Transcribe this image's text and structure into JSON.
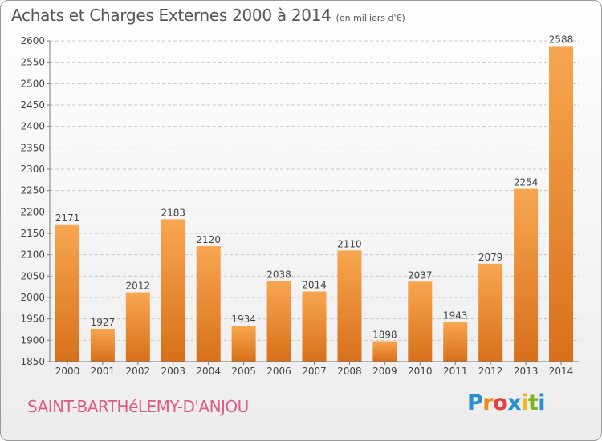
{
  "title": "Achats et Charges Externes 2000 à 2014",
  "unit": "(en milliers d'€)",
  "commune": "SAINT-BARTHéLEMY-D'ANJOU",
  "logo": {
    "letters": [
      "P",
      "r",
      "o",
      "x",
      "i",
      "t",
      "i"
    ],
    "colors": [
      "#2a8fd0",
      "#f08a1c",
      "#e73e3e",
      "#2a8fd0",
      "#f2b81b",
      "#7ab51d",
      "#2a8fd0"
    ]
  },
  "colors": {
    "bar_top": "#f8a650",
    "bar_bottom": "#d8701a",
    "grid": "#c8c8c8",
    "text": "#444444"
  },
  "chart_data": {
    "type": "bar",
    "title": "Achats et Charges Externes 2000 à 2014",
    "subtitle": "(en milliers d'€)",
    "categories": [
      "2000",
      "2001",
      "2002",
      "2003",
      "2004",
      "2005",
      "2006",
      "2007",
      "2008",
      "2009",
      "2010",
      "2011",
      "2012",
      "2013",
      "2014"
    ],
    "values": [
      2171,
      1927,
      2012,
      2183,
      2120,
      1934,
      2038,
      2014,
      2110,
      1898,
      2037,
      1943,
      2079,
      2254,
      2588
    ],
    "ylim": [
      1850,
      2600
    ],
    "yticks": [
      1850,
      1900,
      1950,
      2000,
      2050,
      2100,
      2150,
      2200,
      2250,
      2300,
      2350,
      2400,
      2450,
      2500,
      2550,
      2600
    ],
    "grid": true,
    "data_labels": true
  }
}
